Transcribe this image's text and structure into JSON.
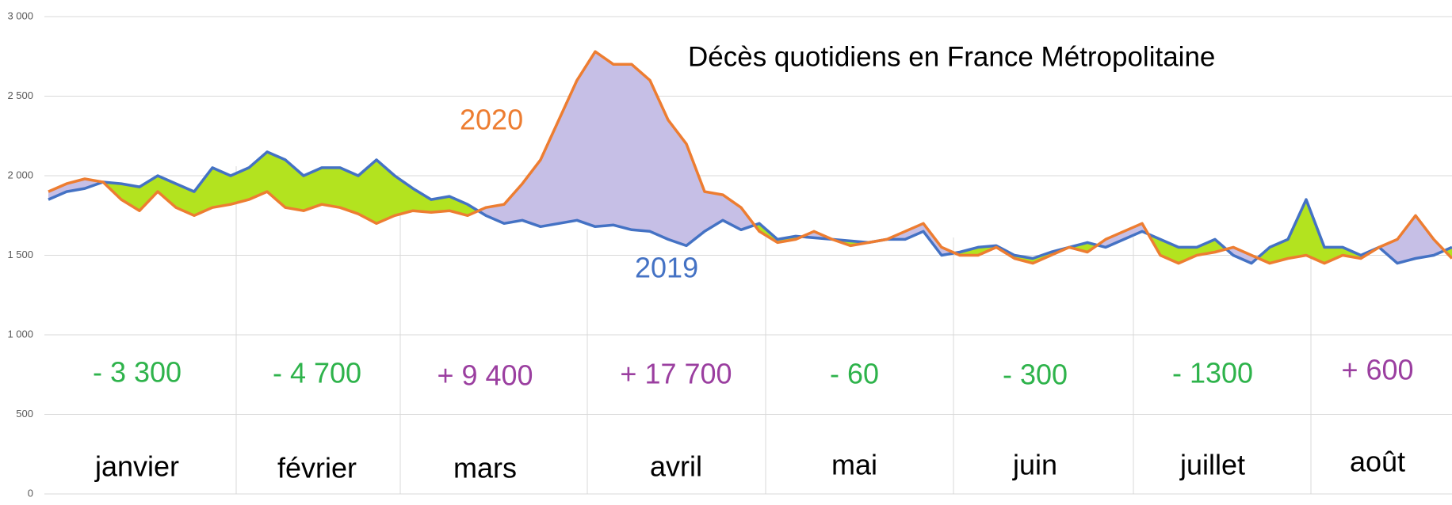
{
  "chart_data": {
    "type": "line",
    "title": "Décès quotidiens en France Métropolitaine",
    "ylim": [
      0,
      3000
    ],
    "yticks": [
      0,
      500,
      {
        "value": 1000,
        "label": "1 000"
      },
      {
        "value": 1500,
        "label": "1 500"
      },
      {
        "value": 2000,
        "label": "2 000"
      },
      {
        "value": 2500,
        "label": "2 500"
      },
      {
        "value": 3000,
        "label": "3 000"
      }
    ],
    "grid": true,
    "fill_colors": {
      "above": "#c6bfe6",
      "below": "#b3e31f"
    },
    "series": [
      {
        "name": "2020",
        "color": "#ed7d31",
        "values": [
          1900,
          1950,
          1980,
          1960,
          1850,
          1780,
          1900,
          1800,
          1750,
          1800,
          1820,
          1850,
          1900,
          1800,
          1780,
          1820,
          1800,
          1760,
          1700,
          1750,
          1780,
          1770,
          1780,
          1750,
          1800,
          1820,
          1950,
          2100,
          2350,
          2600,
          2780,
          2700,
          2700,
          2600,
          2350,
          2200,
          1900,
          1880,
          1800,
          1650,
          1580,
          1600,
          1650,
          1600,
          1560,
          1580,
          1600,
          1650,
          1700,
          1550,
          1500,
          1500,
          1550,
          1480,
          1450,
          1500,
          1550,
          1520,
          1600,
          1650,
          1700,
          1500,
          1450,
          1500,
          1520,
          1550,
          1500,
          1450,
          1480,
          1500,
          1450,
          1500,
          1480,
          1550,
          1600,
          1750,
          1600,
          1480
        ]
      },
      {
        "name": "2019",
        "color": "#4472c4",
        "values": [
          1850,
          1900,
          1920,
          1960,
          1950,
          1930,
          2000,
          1950,
          1900,
          2050,
          2000,
          2050,
          2150,
          2100,
          2000,
          2050,
          2050,
          2000,
          2100,
          2000,
          1920,
          1850,
          1870,
          1820,
          1750,
          1700,
          1720,
          1680,
          1700,
          1720,
          1680,
          1690,
          1660,
          1650,
          1600,
          1560,
          1650,
          1720,
          1660,
          1700,
          1600,
          1620,
          1610,
          1600,
          1590,
          1580,
          1600,
          1600,
          1650,
          1500,
          1520,
          1550,
          1560,
          1500,
          1480,
          1520,
          1550,
          1580,
          1550,
          1600,
          1650,
          1600,
          1550,
          1550,
          1600,
          1500,
          1450,
          1550,
          1600,
          1850,
          1550,
          1550,
          1500,
          1550,
          1450,
          1480,
          1500,
          1550
        ]
      }
    ],
    "months": [
      {
        "label": "janvier",
        "difference": "- 3 300",
        "difference_color": "#2eb34b"
      },
      {
        "label": "février",
        "difference": "- 4 700",
        "difference_color": "#2eb34b"
      },
      {
        "label": "mars",
        "difference": "+ 9 400",
        "difference_color": "#9b3fa0"
      },
      {
        "label": "avril",
        "difference": "+ 17 700",
        "difference_color": "#9b3fa0"
      },
      {
        "label": "mai",
        "difference": "- 60",
        "difference_color": "#2eb34b"
      },
      {
        "label": "juin",
        "difference": "- 300",
        "difference_color": "#2eb34b"
      },
      {
        "label": "juillet",
        "difference": "- 1300",
        "difference_color": "#2eb34b"
      },
      {
        "label": "août",
        "difference": "+ 600",
        "difference_color": "#9b3fa0"
      }
    ]
  }
}
